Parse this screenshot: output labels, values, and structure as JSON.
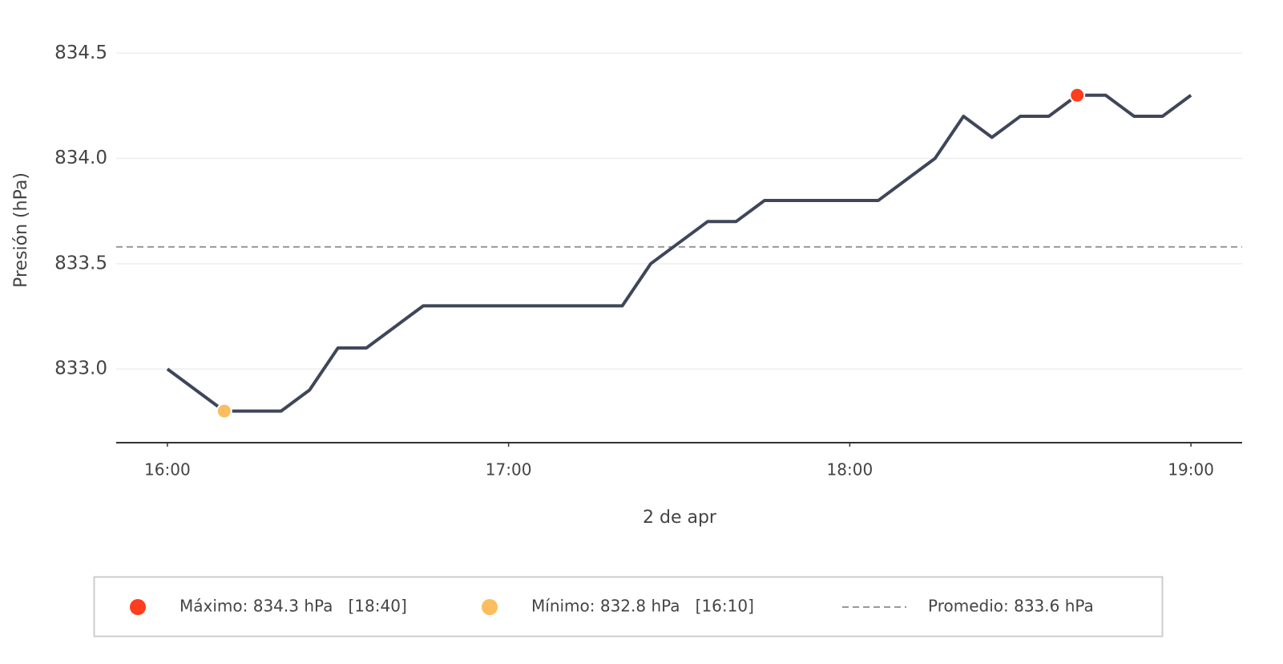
{
  "chart_data": {
    "type": "line",
    "x_label": "2 de apr",
    "y_label": "Presión (hPa)",
    "x": [
      "16:00",
      "16:05",
      "16:10",
      "16:15",
      "16:20",
      "16:25",
      "16:30",
      "16:35",
      "16:40",
      "16:45",
      "16:50",
      "16:55",
      "17:00",
      "17:05",
      "17:10",
      "17:15",
      "17:20",
      "17:25",
      "17:30",
      "17:35",
      "17:40",
      "17:45",
      "17:50",
      "17:55",
      "18:00",
      "18:05",
      "18:10",
      "18:15",
      "18:20",
      "18:25",
      "18:30",
      "18:35",
      "18:40",
      "18:45",
      "18:50",
      "18:55",
      "19:00"
    ],
    "values": [
      833.0,
      832.9,
      832.8,
      832.8,
      832.8,
      832.9,
      833.1,
      833.1,
      833.2,
      833.3,
      833.3,
      833.3,
      833.3,
      833.3,
      833.3,
      833.3,
      833.3,
      833.5,
      833.6,
      833.7,
      833.7,
      833.8,
      833.8,
      833.8,
      833.8,
      833.8,
      833.9,
      834.0,
      834.2,
      834.1,
      834.2,
      834.2,
      834.3,
      834.3,
      834.2,
      834.2,
      834.3
    ],
    "color": "#3f4659",
    "xlim": [
      "15:51",
      "19:09"
    ],
    "xticks": [
      "16:00",
      "17:00",
      "18:00",
      "19:00"
    ],
    "ylim": [
      832.65,
      834.6
    ],
    "yticks": [
      {
        "value": 833,
        "label": "833.0"
      },
      833.5,
      {
        "value": 834,
        "label": "834.0"
      },
      834.5
    ],
    "grid": true,
    "markers": [
      {
        "label": "Máximo: 834.3 hPa   [18:40]",
        "x": "18:40",
        "value": 834.3,
        "color": "#ff3d1f"
      },
      {
        "label": "Mínimo: 832.8 hPa   [16:10]",
        "x": "16:10",
        "value": 832.8,
        "color": "#fbbd5e"
      }
    ],
    "mean": {
      "label": "Promedio: 833.6 hPa",
      "value": 833.58,
      "color": "#999999"
    }
  }
}
